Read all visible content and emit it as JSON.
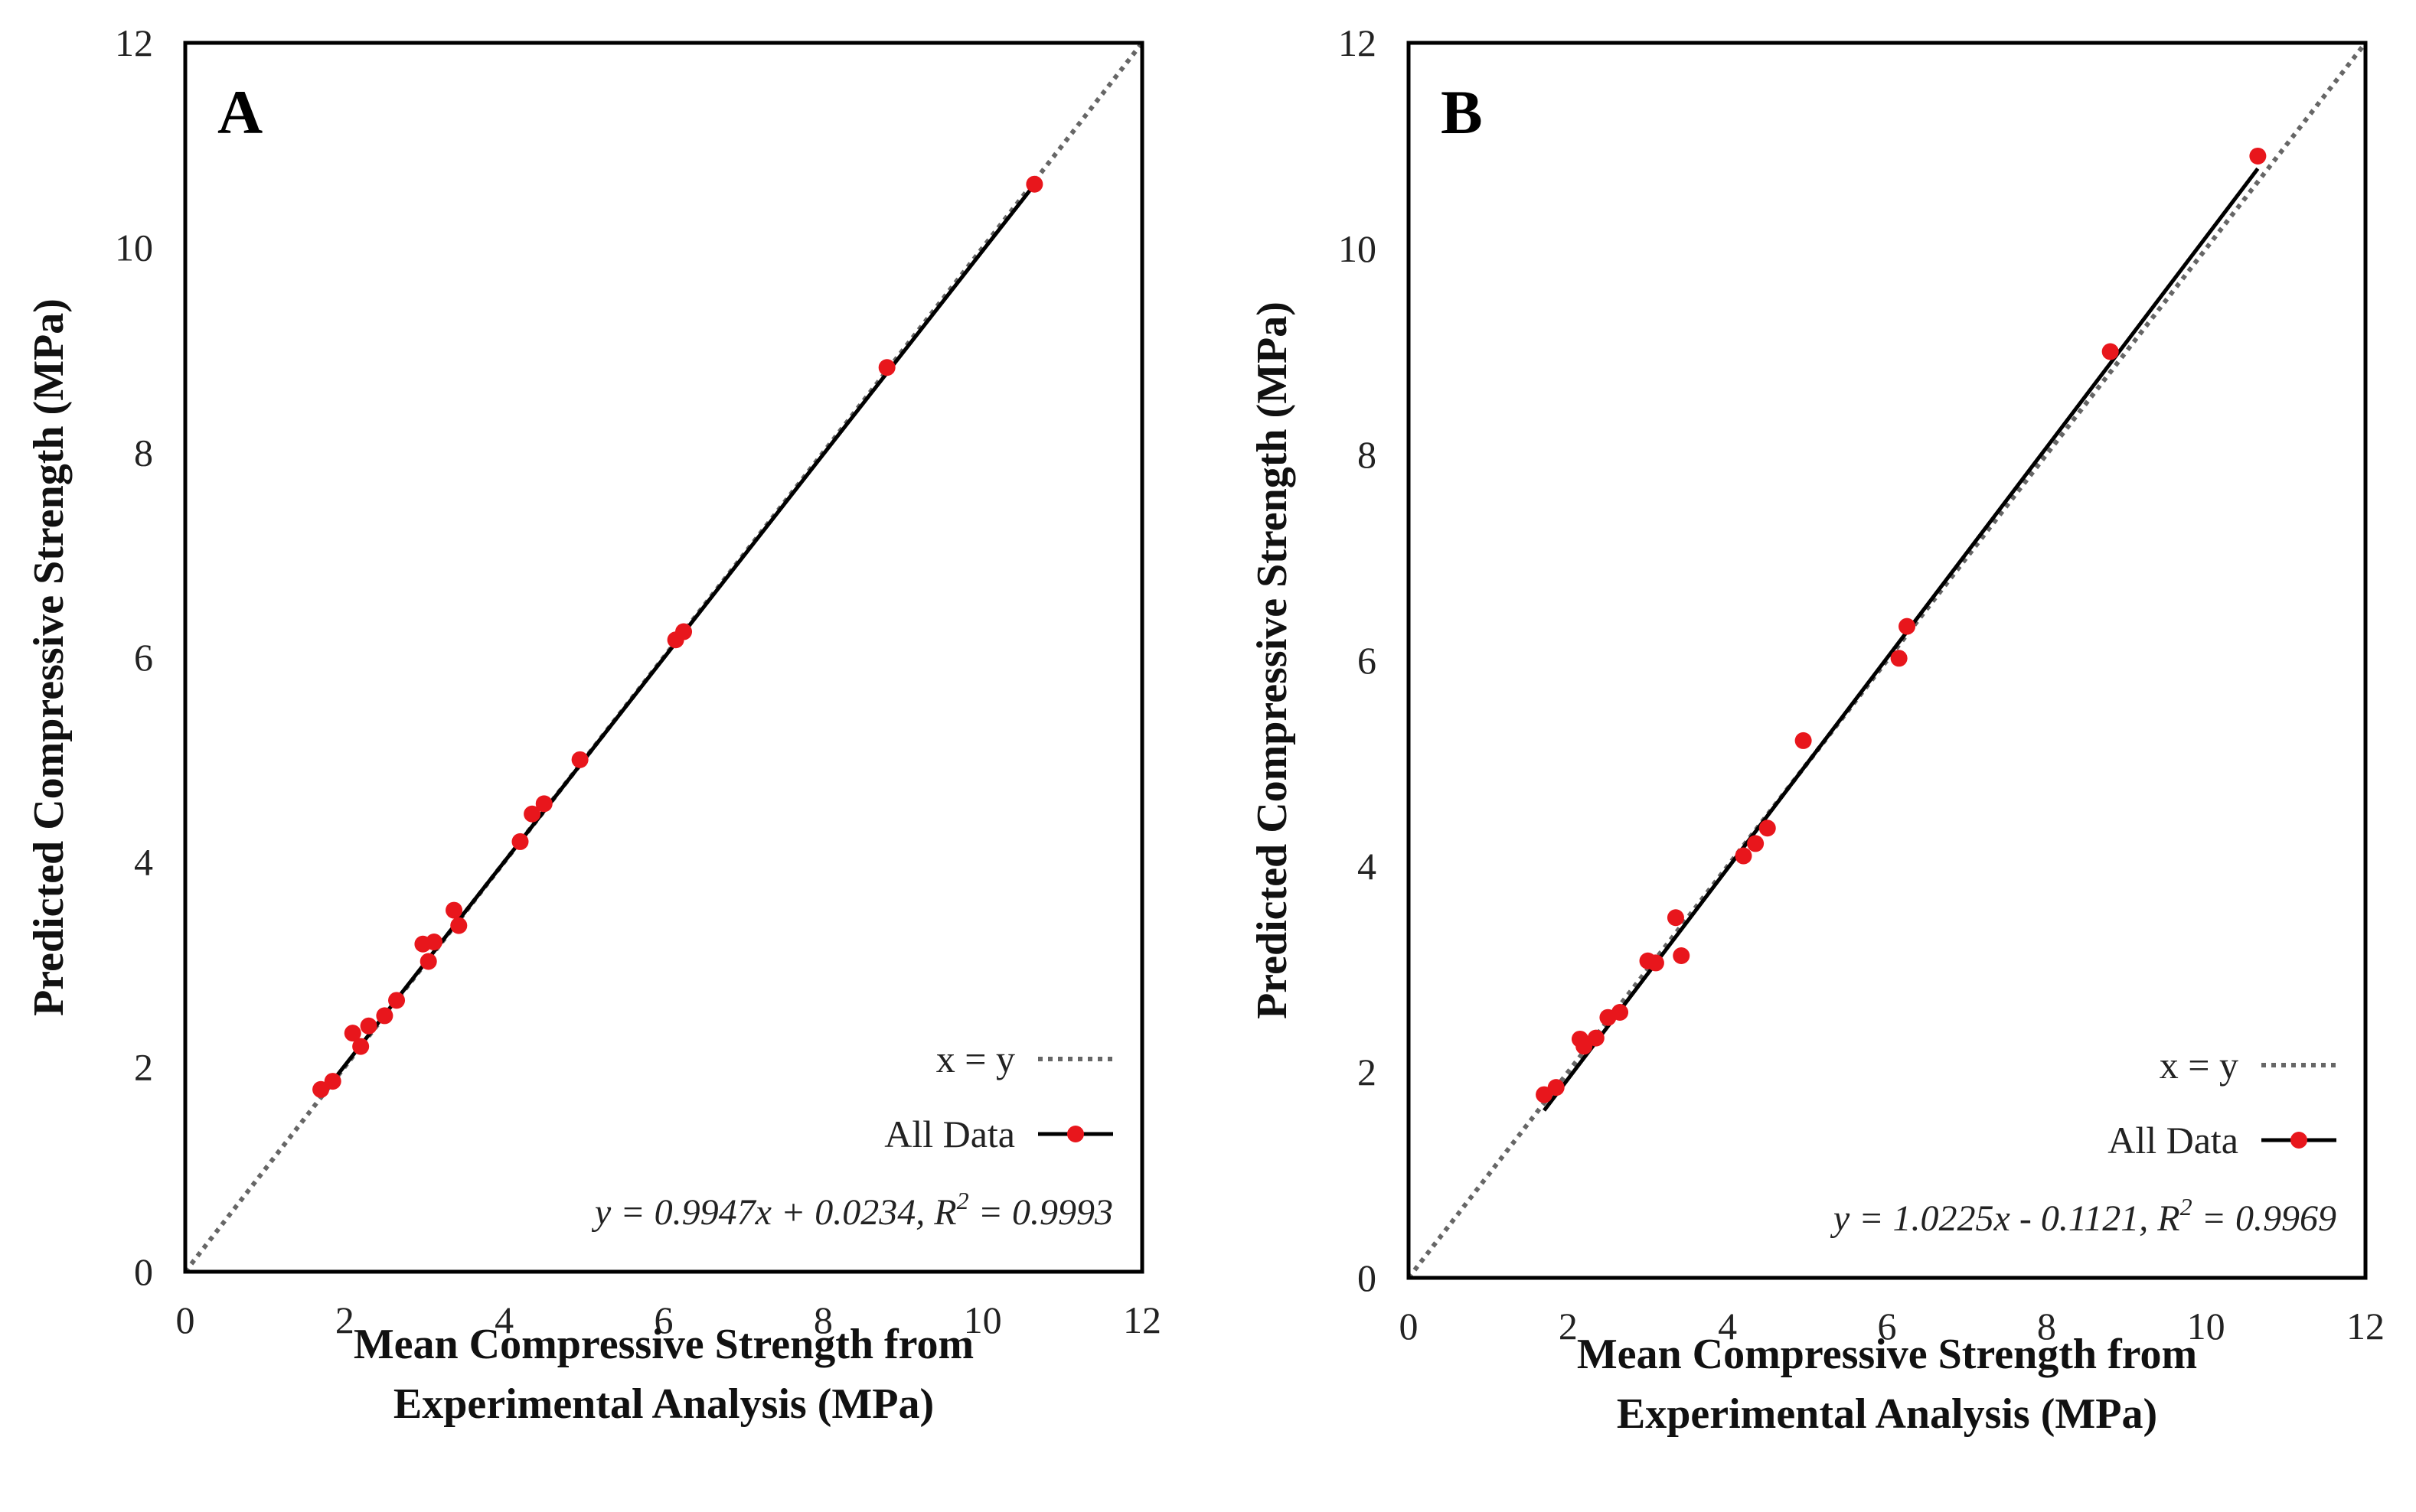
{
  "chart_data": [
    {
      "type": "scatter",
      "panel_label": "A",
      "xlabel_line1": "Mean Compressive Strength from",
      "xlabel_line2": "Experimental Analysis (MPa)",
      "ylabel": "Predicted Compressive Strength (MPa)",
      "xlim": [
        0,
        12
      ],
      "ylim": [
        0,
        12
      ],
      "x_ticks": [
        "0",
        "2",
        "4",
        "6",
        "8",
        "10",
        "12"
      ],
      "y_ticks": [
        "0",
        "2",
        "4",
        "6",
        "8",
        "10",
        "12"
      ],
      "legend": {
        "position": "bottom-right",
        "entries": [
          "x = y",
          "All Data"
        ]
      },
      "equation": "y = 0.9947x + 0.0234, R",
      "r2_superscript": "2",
      "r2_value": " = 0.9993",
      "fit": {
        "slope": 0.9947,
        "intercept": 0.0234,
        "x_range": [
          1.7,
          10.65
        ]
      },
      "identity_line": {
        "x_range": [
          0,
          12
        ]
      },
      "series": [
        {
          "name": "All Data",
          "color": "#e8161c",
          "x": [
            1.7,
            1.85,
            2.1,
            2.2,
            2.3,
            2.5,
            2.65,
            2.98,
            3.05,
            3.12,
            3.37,
            3.43,
            4.2,
            4.35,
            4.5,
            4.95,
            6.15,
            6.25,
            8.8,
            10.65
          ],
          "y": [
            1.78,
            1.86,
            2.33,
            2.2,
            2.4,
            2.5,
            2.65,
            3.2,
            3.03,
            3.22,
            3.53,
            3.38,
            4.2,
            4.47,
            4.57,
            5.0,
            6.17,
            6.25,
            8.83,
            10.62
          ]
        }
      ]
    },
    {
      "type": "scatter",
      "panel_label": "B",
      "xlabel_line1": "Mean Compressive Strength from",
      "xlabel_line2": "Experimental Analysis (MPa)",
      "ylabel": "Predicted Compressive Strength (MPa)",
      "xlim": [
        0,
        12
      ],
      "ylim": [
        0,
        12
      ],
      "x_ticks": [
        "0",
        "2",
        "4",
        "6",
        "8",
        "10",
        "12"
      ],
      "y_ticks": [
        "0",
        "2",
        "4",
        "6",
        "8",
        "10",
        "12"
      ],
      "legend": {
        "position": "bottom-right",
        "entries": [
          "x = y",
          "All Data"
        ]
      },
      "equation": "y = 1.0225x - 0.1121, R",
      "r2_superscript": "2",
      "r2_value": " = 0.9969",
      "fit": {
        "slope": 1.0225,
        "intercept": -0.1121,
        "x_range": [
          1.7,
          10.65
        ]
      },
      "identity_line": {
        "x_range": [
          0,
          12
        ]
      },
      "series": [
        {
          "name": "All Data",
          "color": "#e8161c",
          "x": [
            1.7,
            1.85,
            2.15,
            2.2,
            2.35,
            2.5,
            2.65,
            3.0,
            3.1,
            3.35,
            3.42,
            4.2,
            4.35,
            4.5,
            4.95,
            6.15,
            6.25,
            8.8,
            10.65
          ],
          "y": [
            1.78,
            1.85,
            2.32,
            2.25,
            2.33,
            2.53,
            2.58,
            3.08,
            3.06,
            3.5,
            3.13,
            4.1,
            4.22,
            4.37,
            5.22,
            6.02,
            6.33,
            9.0,
            10.9
          ]
        }
      ]
    }
  ]
}
